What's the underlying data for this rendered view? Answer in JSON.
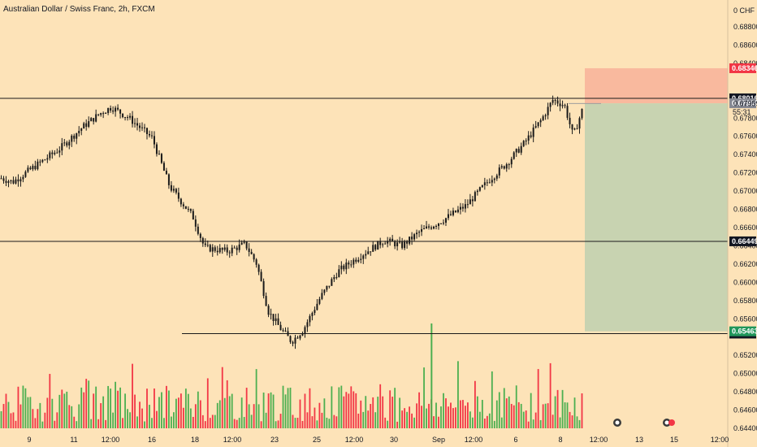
{
  "header": {
    "title": "Australian Dollar / Swiss Franc, 2h, FXCM"
  },
  "price_axis": {
    "currency": "0 CHF"
  },
  "countdown": "55:31",
  "colors": {
    "background": "#fde3b8",
    "up": "#4caf50",
    "down": "#f23645",
    "candle": "#1a1a1a",
    "stop_zone": "#f9b99e",
    "target_zone": "#c8d3b1",
    "entry_badge": "#868993",
    "stop_badge": "#f23645",
    "target_badge": "#21965b",
    "level_badge": "#131722"
  },
  "chart_data": {
    "type": "candlestick",
    "title": "Australian Dollar / Swiss Franc, 2h, FXCM",
    "ylim": [
      0.644,
      0.6908
    ],
    "y_ticks": [
      "0.68800",
      "0.68600",
      "0.68400",
      "0.67800",
      "0.67600",
      "0.67400",
      "0.67200",
      "0.67000",
      "0.66800",
      "0.66600",
      "0.66400",
      "0.66200",
      "0.66000",
      "0.65800",
      "0.65600",
      "0.65200",
      "0.65000",
      "0.64800",
      "0.64600",
      "0.64400"
    ],
    "x_ticks": [
      "9",
      "11",
      "12:00",
      "16",
      "18",
      "12:00",
      "23",
      "25",
      "12:00",
      "30",
      "Sep",
      "12:00",
      "6",
      "8",
      "12:00",
      "13",
      "15",
      "12:00"
    ],
    "price_path": [
      {
        "x": 0.0,
        "y": 0.6714
      },
      {
        "x": 0.02,
        "y": 0.671
      },
      {
        "x": 0.06,
        "y": 0.6728
      },
      {
        "x": 0.1,
        "y": 0.6746
      },
      {
        "x": 0.14,
        "y": 0.677
      },
      {
        "x": 0.17,
        "y": 0.6785
      },
      {
        "x": 0.19,
        "y": 0.6792
      },
      {
        "x": 0.22,
        "y": 0.678
      },
      {
        "x": 0.26,
        "y": 0.6758
      },
      {
        "x": 0.29,
        "y": 0.6705
      },
      {
        "x": 0.33,
        "y": 0.6672
      },
      {
        "x": 0.35,
        "y": 0.6638
      },
      {
        "x": 0.39,
        "y": 0.6634
      },
      {
        "x": 0.42,
        "y": 0.6642
      },
      {
        "x": 0.44,
        "y": 0.662
      },
      {
        "x": 0.46,
        "y": 0.6568
      },
      {
        "x": 0.48,
        "y": 0.655
      },
      {
        "x": 0.5,
        "y": 0.6535
      },
      {
        "x": 0.52,
        "y": 0.6548
      },
      {
        "x": 0.55,
        "y": 0.6584
      },
      {
        "x": 0.58,
        "y": 0.6612
      },
      {
        "x": 0.62,
        "y": 0.663
      },
      {
        "x": 0.66,
        "y": 0.6646
      },
      {
        "x": 0.69,
        "y": 0.664
      },
      {
        "x": 0.72,
        "y": 0.6655
      },
      {
        "x": 0.76,
        "y": 0.6668
      },
      {
        "x": 0.8,
        "y": 0.6684
      },
      {
        "x": 0.84,
        "y": 0.6712
      },
      {
        "x": 0.87,
        "y": 0.673
      },
      {
        "x": 0.9,
        "y": 0.6752
      },
      {
        "x": 0.93,
        "y": 0.6778
      },
      {
        "x": 0.95,
        "y": 0.68
      },
      {
        "x": 0.97,
        "y": 0.6794
      },
      {
        "x": 0.985,
        "y": 0.676
      },
      {
        "x": 1.0,
        "y": 0.6788
      }
    ],
    "volume_spikes": [
      {
        "x": 0.74,
        "v": 1.0
      }
    ],
    "horizontal_levels": [
      {
        "value": 0.68016,
        "label": "0.68016"
      },
      {
        "value": 0.66449,
        "label": "0.66449"
      },
      {
        "value": 0.65438,
        "label": "0.65438"
      }
    ],
    "position": {
      "entry": 0.67962,
      "entry_label": "0.67962",
      "stop": 0.68346,
      "stop_label": "0.68346",
      "target": 0.65463,
      "target_label": "0.65463"
    },
    "last_price": 0.67959,
    "last_price_label": "0.67959"
  }
}
